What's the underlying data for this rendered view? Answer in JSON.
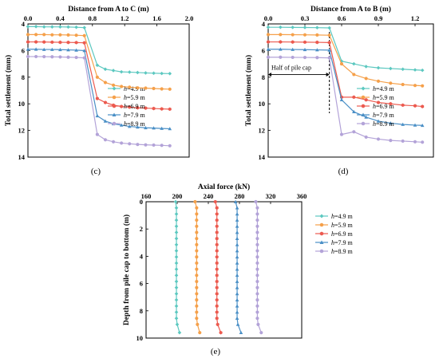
{
  "chart_data": [
    {
      "id": "c",
      "type": "line",
      "caption": "(c)",
      "xlabel": "Distance from A to C (m)",
      "ylabel": "Total settlement (mm)",
      "xlim": [
        0,
        2.0
      ],
      "ylim": [
        14,
        4
      ],
      "xticks": [
        "0.0",
        "0.4",
        "0.8",
        "1.2",
        "1.6",
        "2.0"
      ],
      "yticks": [
        "4",
        "6",
        "8",
        "10",
        "12",
        "14"
      ],
      "x_axis_position": "top",
      "y_axis_inverted": true,
      "grid": false,
      "legend_position": "right-center",
      "series": [
        {
          "name": "h=4.9 m",
          "color": "#5cc8c0",
          "marker": "diamond",
          "x": [
            0.0,
            0.1,
            0.2,
            0.3,
            0.4,
            0.5,
            0.6,
            0.7,
            0.86,
            0.96,
            1.06,
            1.16,
            1.26,
            1.36,
            1.46,
            1.56,
            1.66,
            1.76
          ],
          "y": [
            4.2,
            4.2,
            4.22,
            4.22,
            4.22,
            4.23,
            4.25,
            4.28,
            7.1,
            7.4,
            7.5,
            7.6,
            7.62,
            7.65,
            7.68,
            7.7,
            7.72,
            7.73
          ]
        },
        {
          "name": "h=5.9 m",
          "color": "#f5a04a",
          "marker": "circle",
          "x": [
            0.0,
            0.1,
            0.2,
            0.3,
            0.4,
            0.5,
            0.6,
            0.7,
            0.86,
            0.96,
            1.06,
            1.16,
            1.26,
            1.36,
            1.46,
            1.56,
            1.66,
            1.76
          ],
          "y": [
            4.8,
            4.8,
            4.8,
            4.82,
            4.82,
            4.83,
            4.85,
            4.88,
            8.0,
            8.4,
            8.6,
            8.7,
            8.75,
            8.8,
            8.82,
            8.85,
            8.88,
            8.9
          ]
        },
        {
          "name": "h=6.9 m",
          "color": "#ec5a4f",
          "marker": "hexagon",
          "x": [
            0.0,
            0.1,
            0.2,
            0.3,
            0.4,
            0.5,
            0.6,
            0.7,
            0.86,
            0.96,
            1.06,
            1.16,
            1.26,
            1.36,
            1.46,
            1.56,
            1.66,
            1.76
          ],
          "y": [
            5.35,
            5.35,
            5.36,
            5.37,
            5.38,
            5.39,
            5.4,
            5.42,
            9.6,
            9.9,
            10.1,
            10.2,
            10.25,
            10.3,
            10.32,
            10.35,
            10.38,
            10.4
          ]
        },
        {
          "name": "h=7.9 m",
          "color": "#4a8fc6",
          "marker": "triangle",
          "x": [
            0.0,
            0.1,
            0.2,
            0.3,
            0.4,
            0.5,
            0.6,
            0.7,
            0.86,
            0.96,
            1.06,
            1.16,
            1.26,
            1.36,
            1.46,
            1.56,
            1.66,
            1.76
          ],
          "y": [
            5.9,
            5.9,
            5.92,
            5.92,
            5.93,
            5.95,
            5.97,
            6.0,
            10.9,
            11.3,
            11.5,
            11.6,
            11.7,
            11.75,
            11.8,
            11.82,
            11.85,
            11.87
          ]
        },
        {
          "name": "h=8.9 m",
          "color": "#b3a3d8",
          "marker": "circle",
          "x": [
            0.0,
            0.1,
            0.2,
            0.3,
            0.4,
            0.5,
            0.6,
            0.7,
            0.86,
            0.96,
            1.06,
            1.16,
            1.26,
            1.36,
            1.46,
            1.56,
            1.66,
            1.76
          ],
          "y": [
            6.45,
            6.45,
            6.46,
            6.47,
            6.48,
            6.5,
            6.52,
            6.55,
            12.3,
            12.7,
            12.85,
            12.95,
            13.0,
            13.05,
            13.08,
            13.1,
            13.12,
            13.15
          ]
        }
      ]
    },
    {
      "id": "d",
      "type": "line",
      "caption": "(d)",
      "xlabel": "Distance from A to B (m)",
      "ylabel": "Total settlement (mm)",
      "xlim": [
        0,
        1.35
      ],
      "ylim": [
        14,
        4
      ],
      "xticks": [
        "0.0",
        "0.3",
        "0.6",
        "0.9",
        "1.2"
      ],
      "xtick_values": [
        0,
        0.3,
        0.6,
        0.9,
        1.2
      ],
      "yticks": [
        "4",
        "6",
        "8",
        "10",
        "12",
        "14"
      ],
      "x_axis_position": "top",
      "y_axis_inverted": true,
      "grid": false,
      "legend_position": "right-center",
      "annotation": {
        "text": "Half of pile cap",
        "x": 0.5
      },
      "series": [
        {
          "name": "h=4.9 m",
          "color": "#5cc8c0",
          "marker": "diamond",
          "x": [
            0.0,
            0.1,
            0.2,
            0.3,
            0.4,
            0.5,
            0.6,
            0.7,
            0.8,
            0.9,
            1.0,
            1.1,
            1.2,
            1.26
          ],
          "y": [
            4.25,
            4.25,
            4.26,
            4.27,
            4.28,
            4.3,
            6.8,
            7.0,
            7.2,
            7.3,
            7.35,
            7.4,
            7.45,
            7.48
          ]
        },
        {
          "name": "h=5.9 m",
          "color": "#f5a04a",
          "marker": "circle",
          "x": [
            0.0,
            0.1,
            0.2,
            0.3,
            0.4,
            0.5,
            0.6,
            0.7,
            0.8,
            0.9,
            1.0,
            1.1,
            1.2,
            1.26
          ],
          "y": [
            4.8,
            4.8,
            4.81,
            4.82,
            4.83,
            4.85,
            7.0,
            7.8,
            8.1,
            8.3,
            8.45,
            8.55,
            8.62,
            8.65
          ]
        },
        {
          "name": "h=6.9 m",
          "color": "#ec5a4f",
          "marker": "hexagon",
          "x": [
            0.0,
            0.1,
            0.2,
            0.3,
            0.4,
            0.5,
            0.6,
            0.7,
            0.8,
            0.9,
            1.0,
            1.1,
            1.2,
            1.26
          ],
          "y": [
            5.35,
            5.35,
            5.36,
            5.37,
            5.38,
            5.4,
            9.5,
            9.5,
            9.7,
            9.9,
            10.0,
            10.1,
            10.15,
            10.2
          ]
        },
        {
          "name": "h=7.9 m",
          "color": "#4a8fc6",
          "marker": "triangle",
          "x": [
            0.0,
            0.1,
            0.2,
            0.3,
            0.4,
            0.5,
            0.6,
            0.7,
            0.8,
            0.9,
            1.0,
            1.1,
            1.2,
            1.26
          ],
          "y": [
            5.9,
            5.9,
            5.92,
            5.93,
            5.95,
            5.97,
            9.7,
            10.6,
            11.0,
            11.3,
            11.45,
            11.55,
            11.6,
            11.62
          ]
        },
        {
          "name": "h=8.9 m",
          "color": "#b3a3d8",
          "marker": "circle",
          "x": [
            0.0,
            0.1,
            0.2,
            0.3,
            0.4,
            0.5,
            0.6,
            0.7,
            0.8,
            0.9,
            1.0,
            1.1,
            1.2,
            1.26
          ],
          "y": [
            6.5,
            6.5,
            6.51,
            6.52,
            6.53,
            6.55,
            12.3,
            12.1,
            12.5,
            12.65,
            12.75,
            12.8,
            12.85,
            12.88
          ]
        }
      ]
    },
    {
      "id": "e",
      "type": "line",
      "caption": "(e)",
      "xlabel": "Axial force (kN)",
      "ylabel": "Depth from pile cap to bottom (m)",
      "xlim": [
        160,
        360
      ],
      "ylim": [
        10,
        0
      ],
      "xticks": [
        "160",
        "200",
        "240",
        "280",
        "320",
        "360"
      ],
      "yticks": [
        "0",
        "2",
        "4",
        "6",
        "8",
        "10"
      ],
      "x_axis_position": "top",
      "y_axis_inverted": true,
      "grid": false,
      "legend_position": "top-right",
      "series": [
        {
          "name": "h=4.9 m",
          "color": "#5cc8c0",
          "marker": "diamond",
          "x": [
            198,
            199,
            199,
            199,
            199,
            199,
            199,
            199,
            199,
            199,
            199,
            199,
            199,
            199,
            199,
            199,
            199,
            199,
            199,
            199,
            200,
            203
          ],
          "y": [
            0,
            0.45,
            0.9,
            1.35,
            1.8,
            2.25,
            2.7,
            3.15,
            3.6,
            4.05,
            4.5,
            4.95,
            5.4,
            5.85,
            6.3,
            6.75,
            7.2,
            7.65,
            8.1,
            8.55,
            9.0,
            9.6
          ]
        },
        {
          "name": "h=5.9 m",
          "color": "#f5a04a",
          "marker": "circle",
          "x": [
            223,
            225,
            225,
            225,
            225,
            225,
            225,
            225,
            225,
            225,
            225,
            225,
            225,
            225,
            225,
            225,
            225,
            225,
            225,
            225,
            226,
            229
          ],
          "y": [
            0,
            0.45,
            0.9,
            1.35,
            1.8,
            2.25,
            2.7,
            3.15,
            3.6,
            4.05,
            4.5,
            4.95,
            5.4,
            5.85,
            6.3,
            6.75,
            7.2,
            7.65,
            8.1,
            8.55,
            9.0,
            9.6
          ]
        },
        {
          "name": "h=6.9 m",
          "color": "#ec5a4f",
          "marker": "hexagon",
          "x": [
            249,
            251,
            251,
            251,
            251,
            251,
            251,
            251,
            251,
            251,
            251,
            251,
            251,
            251,
            251,
            251,
            251,
            251,
            251,
            251,
            252,
            256
          ],
          "y": [
            0,
            0.45,
            0.9,
            1.35,
            1.8,
            2.25,
            2.7,
            3.15,
            3.6,
            4.05,
            4.5,
            4.95,
            5.4,
            5.85,
            6.3,
            6.75,
            7.2,
            7.65,
            8.1,
            8.55,
            9.0,
            9.6
          ]
        },
        {
          "name": "h=7.9 m",
          "color": "#4a8fc6",
          "marker": "triangle",
          "x": [
            275,
            277,
            277,
            277,
            277,
            277,
            277,
            277,
            277,
            277,
            277,
            277,
            277,
            277,
            277,
            277,
            277,
            277,
            277,
            277,
            278,
            282
          ],
          "y": [
            0,
            0.45,
            0.9,
            1.35,
            1.8,
            2.25,
            2.7,
            3.15,
            3.6,
            4.05,
            4.5,
            4.95,
            5.4,
            5.85,
            6.3,
            6.75,
            7.2,
            7.65,
            8.1,
            8.55,
            9.0,
            9.6
          ]
        },
        {
          "name": "h=8.9 m",
          "color": "#b3a3d8",
          "marker": "circle",
          "x": [
            301,
            303,
            303,
            303,
            303,
            303,
            303,
            303,
            303,
            303,
            303,
            303,
            303,
            303,
            303,
            303,
            303,
            303,
            303,
            303,
            304,
            308
          ],
          "y": [
            0,
            0.45,
            0.9,
            1.35,
            1.8,
            2.25,
            2.7,
            3.15,
            3.6,
            4.05,
            4.5,
            4.95,
            5.4,
            5.85,
            6.3,
            6.75,
            7.2,
            7.65,
            8.1,
            8.55,
            9.0,
            9.6
          ]
        }
      ]
    }
  ]
}
